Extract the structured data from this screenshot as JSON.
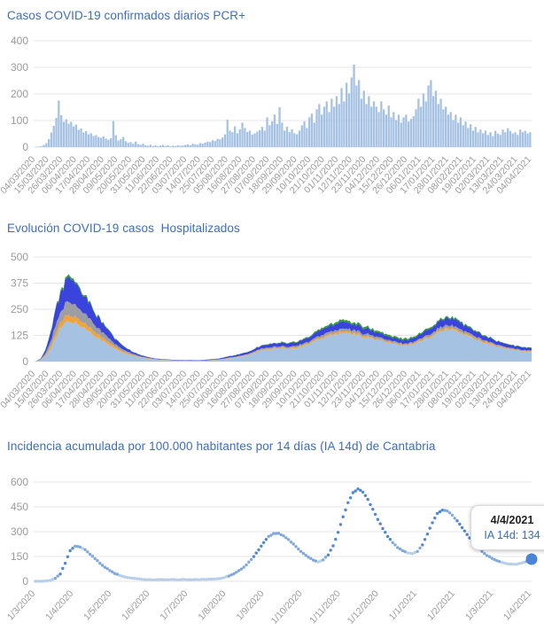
{
  "colors": {
    "title": "#3b6cc7",
    "axis": "#9a9a9a",
    "grid": "#e4e4e4",
    "bar": "#a6c2e3",
    "dot_light": "#b6cee9",
    "dot_mid": "#7fa8dc",
    "dot_dark": "#4f87d2",
    "dot_end": "#4a84d7",
    "tooltip_date": "#222222",
    "tooltip_value": "#3b6cc7"
  },
  "chart_data": [
    {
      "type": "bar",
      "title": "Casos COVID-19 confirmados diarios PCR+",
      "ylabel": "",
      "xlabel": "",
      "ylim": [
        0,
        400
      ],
      "y_ticks": [
        400,
        300,
        200,
        100,
        0
      ],
      "grid": "horizontal",
      "legend": "none",
      "point_interval_days": 2,
      "x_start": "04/03/2020",
      "x_end": "04/04/2021",
      "x_labels": [
        "04/03/2020",
        "15/03/2020",
        "26/03/2020",
        "06/04/2020",
        "17/04/2020",
        "28/04/2020",
        "09/05/2020",
        "20/05/2020",
        "31/05/2020",
        "11/06/2020",
        "22/06/2020",
        "03/07/2020",
        "14/07/2020",
        "25/07/2020",
        "05/08/2020",
        "16/08/2020",
        "27/08/2020",
        "07/09/2020",
        "18/09/2020",
        "29/09/2020",
        "10/10/2020",
        "21/10/2020",
        "01/11/2020",
        "12/11/2020",
        "23/11/2020",
        "04/12/2020",
        "15/12/2020",
        "26/12/2020",
        "06/01/2021",
        "17/01/2021",
        "28/01/2021",
        "08/02/2021",
        "19/02/2021",
        "02/03/2021",
        "13/03/2021",
        "24/03/2021",
        "04/04/2021"
      ],
      "color": "#a6c2e3",
      "values": [
        1,
        2,
        4,
        8,
        15,
        30,
        55,
        80,
        110,
        175,
        120,
        95,
        105,
        88,
        95,
        78,
        85,
        65,
        70,
        55,
        60,
        48,
        52,
        42,
        45,
        38,
        35,
        40,
        32,
        28,
        33,
        98,
        45,
        25,
        30,
        38,
        22,
        16,
        19,
        13,
        21,
        11,
        9,
        13,
        7,
        5,
        9,
        4,
        7,
        3,
        6,
        8,
        4,
        7,
        3,
        5,
        4,
        7,
        5,
        6,
        8,
        10,
        7,
        13,
        11,
        9,
        15,
        13,
        17,
        21,
        19,
        26,
        23,
        31,
        29,
        36,
        48,
        103,
        62,
        56,
        78,
        52,
        67,
        92,
        72,
        57,
        62,
        47,
        52,
        58,
        64,
        76,
        62,
        112,
        82,
        97,
        122,
        87,
        150,
        92,
        62,
        77,
        57,
        67,
        52,
        48,
        62,
        82,
        97,
        72,
        112,
        126,
        92,
        142,
        162,
        122,
        152,
        172,
        132,
        182,
        152,
        192,
        162,
        222,
        172,
        242,
        202,
        262,
        310,
        232,
        252,
        182,
        212,
        162,
        192,
        152,
        172,
        152,
        132,
        172,
        142,
        122,
        156,
        112,
        132,
        102,
        122,
        92,
        112,
        122,
        96,
        106,
        116,
        142,
        182,
        152,
        202,
        172,
        232,
        252,
        192,
        212,
        162,
        182,
        142,
        152,
        122,
        132,
        102,
        122,
        92,
        112,
        82,
        96,
        72,
        86,
        62,
        76,
        56,
        66,
        52,
        62,
        46,
        56,
        41,
        61,
        51,
        46,
        66,
        56,
        71,
        61,
        51,
        56,
        46,
        66,
        56,
        61,
        51,
        56
      ]
    },
    {
      "type": "area",
      "subtype": "stacked",
      "title": "Evolución COVID-19 casos  Hospitalizados",
      "ylabel": "",
      "xlabel": "",
      "ylim": [
        0,
        500
      ],
      "y_ticks": [
        500,
        375,
        250,
        125,
        0
      ],
      "grid": "horizontal",
      "legend": "none",
      "point_interval_days": 4,
      "x_start": "04/03/2020",
      "x_end": "04/04/2021",
      "x_labels": [
        "04/03/2020",
        "15/03/2020",
        "26/03/2020",
        "06/04/2020",
        "17/04/2020",
        "28/04/2020",
        "09/05/2020",
        "20/05/2020",
        "31/05/2020",
        "11/06/2020",
        "22/06/2020",
        "03/07/2020",
        "14/07/2020",
        "25/07/2020",
        "05/08/2020",
        "16/08/2020",
        "27/08/2020",
        "07/09/2020",
        "18/09/2020",
        "29/09/2020",
        "10/10/2020",
        "21/10/2020",
        "01/11/2020",
        "12/11/2020",
        "23/11/2020",
        "04/12/2020",
        "15/12/2020",
        "26/12/2020",
        "06/01/2021",
        "17/01/2021",
        "28/01/2021",
        "08/02/2021",
        "19/02/2021",
        "02/03/2021",
        "13/03/2021",
        "24/03/2021",
        "04/04/2021"
      ],
      "series": [
        {
          "name": "light-blue-area",
          "color": "#a6c2e3",
          "values": [
            1,
            6,
            25,
            60,
            110,
            155,
            185,
            190,
            185,
            172,
            158,
            142,
            125,
            108,
            92,
            76,
            62,
            50,
            40,
            32,
            25,
            20,
            16,
            13,
            10,
            8,
            7,
            6,
            5,
            5,
            4,
            4,
            4,
            5,
            5,
            6,
            7,
            9,
            12,
            15,
            18,
            22,
            26,
            30,
            40,
            48,
            55,
            58,
            60,
            61,
            62,
            62,
            64,
            68,
            75,
            82,
            92,
            103,
            112,
            120,
            128,
            133,
            135,
            134,
            130,
            125,
            119,
            113,
            108,
            102,
            96,
            90,
            85,
            80,
            77,
            78,
            82,
            90,
            100,
            112,
            124,
            137,
            147,
            152,
            151,
            143,
            134,
            124,
            114,
            104,
            95,
            86,
            78,
            71,
            65,
            60,
            56,
            52,
            49,
            48,
            47
          ]
        },
        {
          "name": "orange-band",
          "color": "#f1a43c",
          "values": [
            0,
            1,
            5,
            12,
            20,
            26,
            30,
            30,
            29,
            27,
            25,
            22,
            20,
            17,
            14,
            12,
            10,
            8,
            6,
            5,
            4,
            3,
            2,
            2,
            1,
            1,
            1,
            1,
            0,
            0,
            0,
            0,
            0,
            0,
            0,
            1,
            1,
            1,
            1,
            2,
            2,
            2,
            3,
            3,
            3,
            4,
            4,
            4,
            4,
            4,
            4,
            4,
            4,
            5,
            5,
            5,
            6,
            6,
            7,
            7,
            7,
            8,
            8,
            8,
            8,
            7,
            7,
            7,
            6,
            6,
            6,
            5,
            5,
            5,
            4,
            4,
            5,
            5,
            6,
            6,
            7,
            7,
            8,
            8,
            8,
            8,
            7,
            7,
            6,
            6,
            5,
            5,
            4,
            4,
            4,
            3,
            3,
            3,
            3,
            3,
            3
          ]
        },
        {
          "name": "gray-band",
          "color": "#9c9ea3",
          "values": [
            0,
            2,
            8,
            20,
            38,
            52,
            60,
            62,
            58,
            52,
            46,
            40,
            34,
            28,
            23,
            18,
            14,
            11,
            8,
            6,
            4,
            3,
            2,
            2,
            1,
            1,
            1,
            1,
            1,
            1,
            1,
            1,
            0,
            0,
            0,
            0,
            1,
            1,
            1,
            2,
            2,
            3,
            3,
            4,
            4,
            5,
            6,
            6,
            6,
            6,
            6,
            6,
            6,
            6,
            7,
            7,
            8,
            9,
            10,
            11,
            11,
            12,
            12,
            12,
            11,
            11,
            10,
            10,
            9,
            9,
            8,
            8,
            7,
            7,
            6,
            6,
            7,
            7,
            8,
            9,
            10,
            11,
            12,
            12,
            12,
            11,
            11,
            10,
            9,
            8,
            8,
            7,
            6,
            6,
            5,
            5,
            5,
            4,
            4,
            4,
            4
          ]
        },
        {
          "name": "blue-band",
          "color": "#3b43dd",
          "values": [
            0,
            3,
            15,
            40,
            70,
            92,
            105,
            108,
            100,
            90,
            80,
            70,
            60,
            50,
            41,
            33,
            26,
            20,
            15,
            11,
            8,
            6,
            5,
            4,
            3,
            3,
            2,
            2,
            2,
            2,
            2,
            2,
            2,
            2,
            3,
            3,
            3,
            4,
            5,
            6,
            7,
            8,
            9,
            10,
            11,
            12,
            14,
            15,
            16,
            16,
            16,
            16,
            16,
            17,
            18,
            20,
            22,
            24,
            26,
            28,
            30,
            30,
            31,
            30,
            30,
            28,
            27,
            25,
            24,
            22,
            21,
            20,
            18,
            17,
            17,
            17,
            18,
            20,
            22,
            25,
            28,
            31,
            32,
            34,
            33,
            32,
            30,
            28,
            26,
            24,
            21,
            20,
            19,
            17,
            16,
            15,
            13,
            13,
            12,
            11,
            11
          ]
        },
        {
          "name": "green-band",
          "color": "#2f9e33",
          "values": [
            0,
            1,
            2,
            4,
            6,
            8,
            10,
            10,
            9,
            8,
            7,
            6,
            5,
            4,
            4,
            3,
            3,
            2,
            2,
            1,
            1,
            1,
            1,
            0,
            0,
            0,
            0,
            0,
            0,
            0,
            0,
            0,
            0,
            0,
            0,
            0,
            0,
            0,
            1,
            1,
            1,
            1,
            1,
            1,
            1,
            2,
            2,
            2,
            3,
            3,
            3,
            3,
            3,
            3,
            4,
            4,
            5,
            6,
            7,
            8,
            8,
            9,
            9,
            9,
            9,
            9,
            9,
            8,
            8,
            8,
            7,
            7,
            7,
            6,
            6,
            7,
            6,
            6,
            6,
            6,
            6,
            6,
            6,
            6,
            6,
            6,
            6,
            5,
            5,
            4,
            4,
            3,
            3,
            2,
            2,
            2,
            2,
            2,
            2,
            2,
            2
          ]
        }
      ]
    },
    {
      "type": "line",
      "style": "dotted",
      "title": "Incidencia acumulada por 100.000 habitantes por 14 días (IA 14d) de Cantabria",
      "ylabel": "",
      "xlabel": "",
      "ylim": [
        0,
        600
      ],
      "y_ticks": [
        600,
        450,
        300,
        150,
        0
      ],
      "grid": "horizontal",
      "legend": "none",
      "point_interval_days": 4,
      "x_start": "1/3/2020",
      "x_end": "4/4/2021",
      "x_labels": [
        "1/3/2020",
        "1/4/2020",
        "1/5/2020",
        "1/6/2020",
        "1/7/2020",
        "1/8/2020",
        "1/9/2020",
        "1/10/2020",
        "1/11/2020",
        "1/12/2020",
        "1/1/2021",
        "1/2/2021",
        "1/3/2021",
        "1/4/2021"
      ],
      "values": [
        0,
        0,
        2,
        6,
        18,
        45,
        110,
        185,
        213,
        208,
        190,
        165,
        138,
        110,
        85,
        65,
        48,
        36,
        27,
        20,
        16,
        13,
        11,
        10,
        9,
        10,
        9,
        10,
        10,
        9,
        10,
        10,
        11,
        10,
        11,
        12,
        13,
        16,
        22,
        32,
        46,
        64,
        85,
        115,
        150,
        190,
        235,
        270,
        288,
        290,
        275,
        252,
        225,
        195,
        168,
        145,
        128,
        118,
        130,
        160,
        215,
        295,
        390,
        475,
        535,
        558,
        540,
        495,
        435,
        375,
        320,
        272,
        235,
        205,
        185,
        172,
        168,
        180,
        220,
        285,
        355,
        410,
        430,
        425,
        400,
        365,
        325,
        282,
        242,
        208,
        180,
        157,
        139,
        125,
        114,
        107,
        103,
        104,
        110,
        120,
        134
      ],
      "last_point": {
        "date": "4/4/2021",
        "value": 134
      },
      "tooltip": {
        "date": "4/4/2021",
        "value_label": "IA 14d: 134"
      }
    }
  ]
}
